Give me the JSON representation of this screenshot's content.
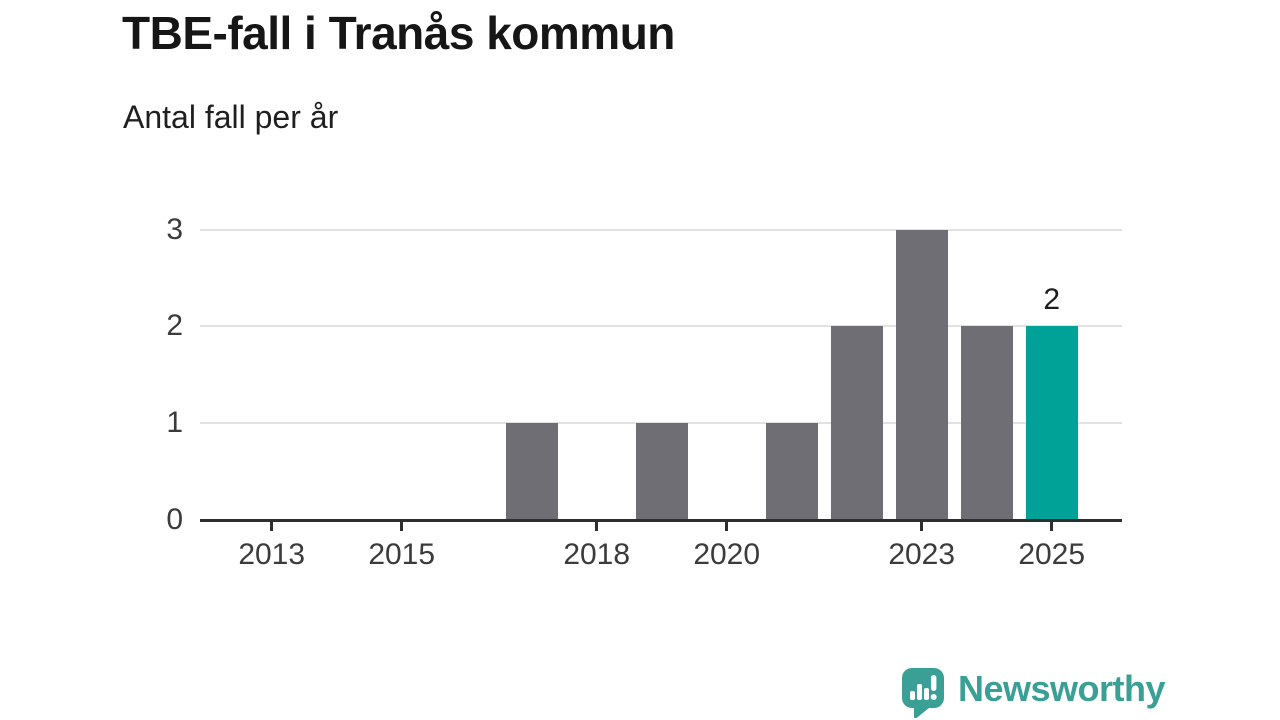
{
  "header": {
    "title": "TBE-fall i Tranås kommun",
    "subtitle": "Antal fall per år"
  },
  "chart_data": {
    "type": "bar",
    "title": "TBE-fall i Tranås kommun",
    "subtitle": "Antal fall per år",
    "x": [
      2012,
      2013,
      2014,
      2015,
      2016,
      2017,
      2018,
      2019,
      2020,
      2021,
      2022,
      2023,
      2024,
      2025
    ],
    "values": [
      0,
      0,
      0,
      0,
      0,
      1,
      0,
      1,
      0,
      1,
      2,
      3,
      2,
      2
    ],
    "highlight": {
      "year": 2025,
      "value": 2,
      "label": "2"
    },
    "x_tick_labels": [
      "2013",
      "2015",
      "2018",
      "2020",
      "2023",
      "2025"
    ],
    "y_tick_labels": [
      "0",
      "1",
      "2",
      "3"
    ],
    "ylim": [
      0,
      3
    ],
    "grid": true,
    "legend_position": "none",
    "colors": {
      "bar": "#6E6E74",
      "highlight": "#00A297",
      "gridline": "#E2E2E2",
      "axis": "#2E2E2E",
      "tick_label": "#3B3B3B",
      "value_label": "#1C1C1C"
    }
  },
  "footer": {
    "brand": "Newsworthy",
    "logo_icon": "speech-bubble-bar-chart-exclamation",
    "logo_color": "#3AA096"
  }
}
